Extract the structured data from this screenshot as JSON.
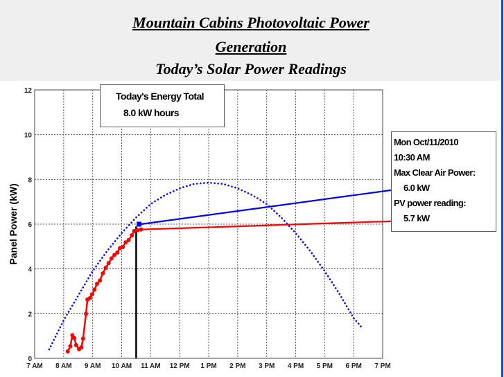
{
  "header": {
    "title_line1": "Mountain Cabins Photovoltaic Power",
    "title_line2": "Generation",
    "subtitle": "Today’s Solar Power Readings"
  },
  "energy_box": {
    "label": "Today's Energy Total",
    "value": "8.0 kW hours"
  },
  "info_box": {
    "date": "Mon Oct/11/2010",
    "time": "10:30 AM",
    "max_label": "Max Clear Air Power:",
    "max_value": "6.0 kW",
    "pv_label": "PV power reading:",
    "pv_value": "5.7 kW"
  },
  "chart_data": {
    "type": "line",
    "ylabel": "Panel Power (kW)",
    "xlabel": "",
    "ylim": [
      0,
      12
    ],
    "yticks": [
      0,
      2,
      4,
      6,
      8,
      10,
      12
    ],
    "xlim": [
      7,
      19
    ],
    "xticks": [
      7,
      8,
      9,
      10,
      11,
      12,
      13,
      14,
      15,
      16,
      17,
      18,
      19
    ],
    "xtick_labels": [
      "7 AM",
      "8 AM",
      "9 AM",
      "10 AM",
      "11 AM",
      "12 PM",
      "1 PM",
      "2 PM",
      "3 PM",
      "4 PM",
      "5 PM",
      "6 PM",
      "7 PM"
    ],
    "grid": true,
    "colors": {
      "pv": "#ff0000",
      "clear_air": "#0000ff",
      "current_time": "#000000"
    },
    "series": [
      {
        "id": "pv",
        "style": "solid-markers",
        "x": [
          8.14,
          8.23,
          8.3,
          8.37,
          8.43,
          8.53,
          8.61,
          8.67,
          8.77,
          8.82,
          8.91,
          8.98,
          9.06,
          9.15,
          9.25,
          9.35,
          9.45,
          9.55,
          9.65,
          9.75,
          9.85,
          9.94,
          10.04,
          10.14,
          10.24,
          10.35,
          10.43,
          10.55,
          10.67
        ],
        "y": [
          0.31,
          0.54,
          1.03,
          0.9,
          0.59,
          0.41,
          0.49,
          0.88,
          1.99,
          2.63,
          2.7,
          2.86,
          3.07,
          3.33,
          3.48,
          3.8,
          4.05,
          4.26,
          4.47,
          4.62,
          4.73,
          4.93,
          4.98,
          5.19,
          5.29,
          5.5,
          5.69,
          5.73,
          5.76
        ]
      },
      {
        "id": "clear_air_curve",
        "style": "dotted",
        "x": [
          7.5,
          8,
          8.5,
          9,
          9.5,
          10,
          10.5,
          11,
          11.5,
          12,
          12.5,
          13,
          13.5,
          14,
          14.5,
          15,
          15.5,
          16,
          16.5,
          17,
          17.5,
          18,
          18.3
        ],
        "y": [
          0.4,
          1.7,
          2.8,
          3.9,
          4.8,
          5.6,
          6.3,
          6.9,
          7.3,
          7.6,
          7.8,
          7.85,
          7.8,
          7.6,
          7.3,
          6.9,
          6.3,
          5.6,
          4.8,
          3.9,
          2.9,
          1.8,
          1.35
        ]
      }
    ],
    "annotations": [
      {
        "type": "leader",
        "series": "clear_air",
        "from": [
          10.67,
          6.0
        ],
        "to": [
          19.3,
          7.52
        ]
      },
      {
        "type": "leader",
        "series": "pv",
        "from": [
          10.67,
          5.76
        ],
        "to": [
          19.3,
          6.13
        ]
      },
      {
        "type": "vline",
        "x": 10.5,
        "y": [
          0,
          5.9
        ]
      },
      {
        "type": "marker",
        "series": "clear_air",
        "x": 10.6,
        "y": 6.0
      }
    ]
  }
}
